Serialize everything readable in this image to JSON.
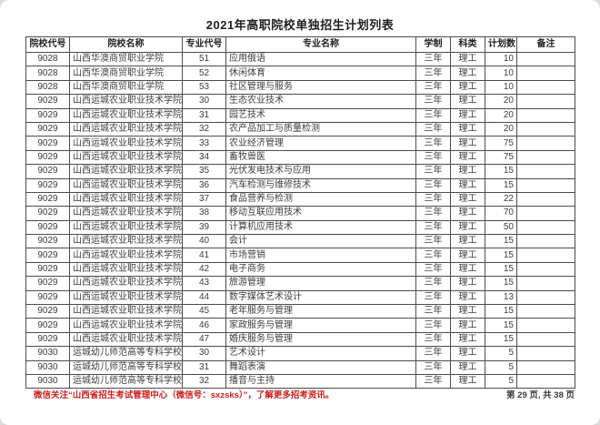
{
  "page": {
    "title": "2021年高职院校单独招生计划列表",
    "footer_note": "微信关注“山西省招生考试管理中心（微信号：sxzsks）”，了解更多招考资讯。",
    "footer_page": "第 29 页, 共 38 页"
  },
  "colors": {
    "footer_note_red": "#cf2020",
    "table_border": "#4c4c4c",
    "text": "#3d3d3d"
  },
  "table": {
    "columns": [
      "院校代号",
      "院校名称",
      "专业代号",
      "专业名称",
      "学制",
      "科类",
      "计划数",
      "备注"
    ],
    "rows": [
      [
        "9028",
        "山西华澳商贸职业学院",
        "51",
        "应用俄语",
        "三年",
        "理工",
        "10",
        ""
      ],
      [
        "9028",
        "山西华澳商贸职业学院",
        "52",
        "休闲体育",
        "三年",
        "理工",
        "10",
        ""
      ],
      [
        "9028",
        "山西华澳商贸职业学院",
        "53",
        "社区管理与服务",
        "三年",
        "理工",
        "10",
        ""
      ],
      [
        "9029",
        "山西运城农业职业技术学院",
        "30",
        "生态农业技术",
        "三年",
        "理工",
        "20",
        ""
      ],
      [
        "9029",
        "山西运城农业职业技术学院",
        "31",
        "园艺技术",
        "三年",
        "理工",
        "20",
        ""
      ],
      [
        "9029",
        "山西运城农业职业技术学院",
        "32",
        "农产品加工与质量检测",
        "三年",
        "理工",
        "20",
        ""
      ],
      [
        "9029",
        "山西运城农业职业技术学院",
        "33",
        "农业经济管理",
        "三年",
        "理工",
        "75",
        ""
      ],
      [
        "9029",
        "山西运城农业职业技术学院",
        "34",
        "畜牧兽医",
        "三年",
        "理工",
        "75",
        ""
      ],
      [
        "9029",
        "山西运城农业职业技术学院",
        "35",
        "光伏发电技术与应用",
        "三年",
        "理工",
        "15",
        ""
      ],
      [
        "9029",
        "山西运城农业职业技术学院",
        "36",
        "汽车检测与维修技术",
        "三年",
        "理工",
        "15",
        ""
      ],
      [
        "9029",
        "山西运城农业职业技术学院",
        "37",
        "食品营养与检测",
        "三年",
        "理工",
        "22",
        ""
      ],
      [
        "9029",
        "山西运城农业职业技术学院",
        "38",
        "移动互联应用技术",
        "三年",
        "理工",
        "70",
        ""
      ],
      [
        "9029",
        "山西运城农业职业技术学院",
        "39",
        "计算机应用技术",
        "三年",
        "理工",
        "50",
        ""
      ],
      [
        "9029",
        "山西运城农业职业技术学院",
        "40",
        "会计",
        "三年",
        "理工",
        "15",
        ""
      ],
      [
        "9029",
        "山西运城农业职业技术学院",
        "41",
        "市场营销",
        "三年",
        "理工",
        "15",
        ""
      ],
      [
        "9029",
        "山西运城农业职业技术学院",
        "42",
        "电子商务",
        "三年",
        "理工",
        "15",
        ""
      ],
      [
        "9029",
        "山西运城农业职业技术学院",
        "43",
        "旅游管理",
        "三年",
        "理工",
        "15",
        ""
      ],
      [
        "9029",
        "山西运城农业职业技术学院",
        "44",
        "数字媒体艺术设计",
        "三年",
        "理工",
        "13",
        ""
      ],
      [
        "9029",
        "山西运城农业职业技术学院",
        "45",
        "老年服务与管理",
        "三年",
        "理工",
        "15",
        ""
      ],
      [
        "9029",
        "山西运城农业职业技术学院",
        "46",
        "家政服务与管理",
        "三年",
        "理工",
        "15",
        ""
      ],
      [
        "9029",
        "山西运城农业职业技术学院",
        "47",
        "婚庆服务与管理",
        "三年",
        "理工",
        "15",
        ""
      ],
      [
        "9030",
        "运城幼儿师范高等专科学校",
        "30",
        "艺术设计",
        "三年",
        "理工",
        "5",
        ""
      ],
      [
        "9030",
        "运城幼儿师范高等专科学校",
        "31",
        "舞蹈表演",
        "三年",
        "理工",
        "5",
        ""
      ],
      [
        "9030",
        "运城幼儿师范高等专科学校",
        "32",
        "播音与主持",
        "三年",
        "理工",
        "5",
        ""
      ]
    ],
    "cell_alignments": [
      "c",
      "l",
      "c",
      "l",
      "c",
      "c",
      "r",
      "l"
    ]
  }
}
